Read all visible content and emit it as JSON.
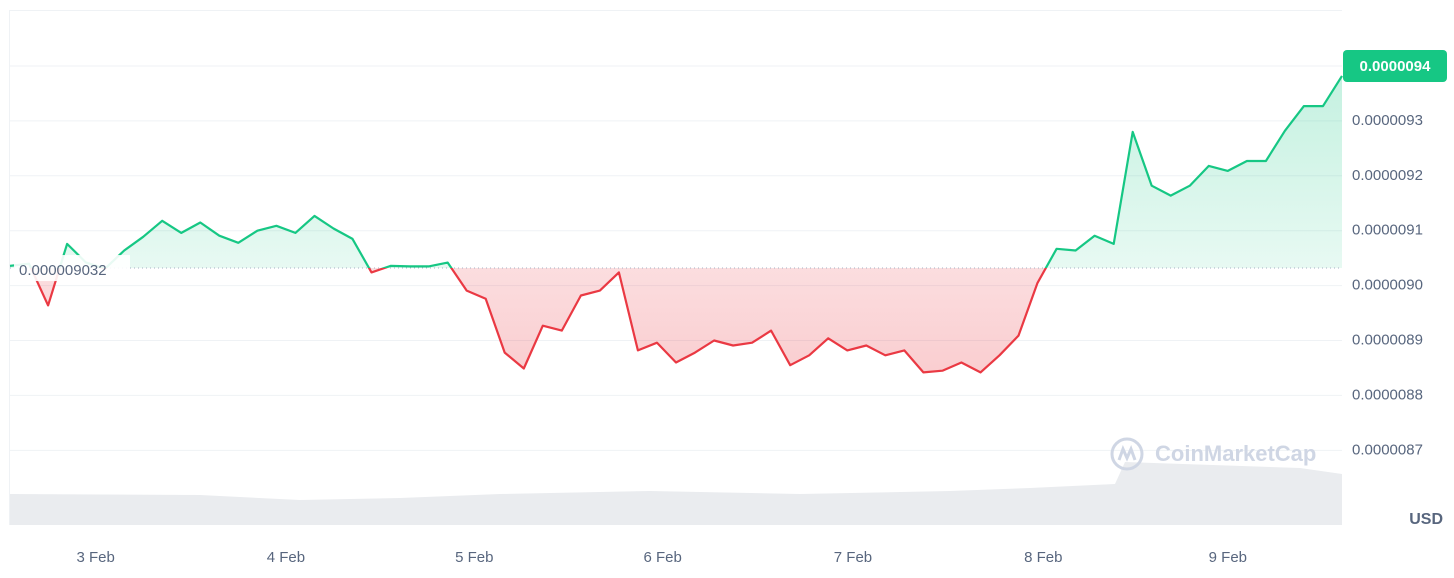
{
  "chart_data": {
    "type": "line",
    "values": [
      9.036e-06,
      9.04e-06,
      8.964e-06,
      9.076e-06,
      9.042e-06,
      9.031e-06,
      9.064e-06,
      9.089e-06,
      9.118e-06,
      9.096e-06,
      9.115e-06,
      9.091e-06,
      9.078e-06,
      9.1e-06,
      9.109e-06,
      9.096e-06,
      9.127e-06,
      9.104e-06,
      9.085e-06,
      9.024e-06,
      9.036e-06,
      9.035e-06,
      9.035e-06,
      9.042e-06,
      8.991e-06,
      8.976e-06,
      8.878e-06,
      8.849e-06,
      8.927e-06,
      8.918e-06,
      8.982e-06,
      8.991e-06,
      9.024e-06,
      8.882e-06,
      8.896e-06,
      8.86e-06,
      8.878e-06,
      8.9e-06,
      8.891e-06,
      8.896e-06,
      8.918e-06,
      8.855e-06,
      8.873e-06,
      8.904e-06,
      8.882e-06,
      8.891e-06,
      8.873e-06,
      8.882e-06,
      8.842e-06,
      8.845e-06,
      8.86e-06,
      8.842e-06,
      8.873e-06,
      8.909e-06,
      9.005e-06,
      9.067e-06,
      9.064e-06,
      9.091e-06,
      9.076e-06,
      9.28e-06,
      9.182e-06,
      9.164e-06,
      9.182e-06,
      9.218e-06,
      9.209e-06,
      9.227e-06,
      9.227e-06,
      9.282e-06,
      9.327e-06,
      9.327e-06,
      9.382e-06
    ],
    "baseline": 9.032e-06,
    "current_price": 9.4e-06,
    "up_color": "#16c784",
    "down_color": "#ea3943",
    "xlim": [
      0,
      70
    ],
    "xticks": [
      {
        "value": 4.5,
        "label": "3 Feb"
      },
      {
        "value": 14.5,
        "label": "4 Feb"
      },
      {
        "value": 24.4,
        "label": "5 Feb"
      },
      {
        "value": 34.3,
        "label": "6 Feb"
      },
      {
        "value": 44.3,
        "label": "7 Feb"
      },
      {
        "value": 54.3,
        "label": "8 Feb"
      },
      {
        "value": 64.0,
        "label": "9 Feb"
      }
    ],
    "ylim": [
      8.564e-06,
      9.502e-06
    ],
    "yticks": [
      8.7e-06,
      8.8e-06,
      8.9e-06,
      {
        "value": 9e-06,
        "label": "0.0000090"
      },
      9.1e-06,
      9.2e-06,
      9.3e-06,
      9.4e-06
    ],
    "currency": "USD",
    "watermark": "CoinMarketCap",
    "grid": true
  }
}
